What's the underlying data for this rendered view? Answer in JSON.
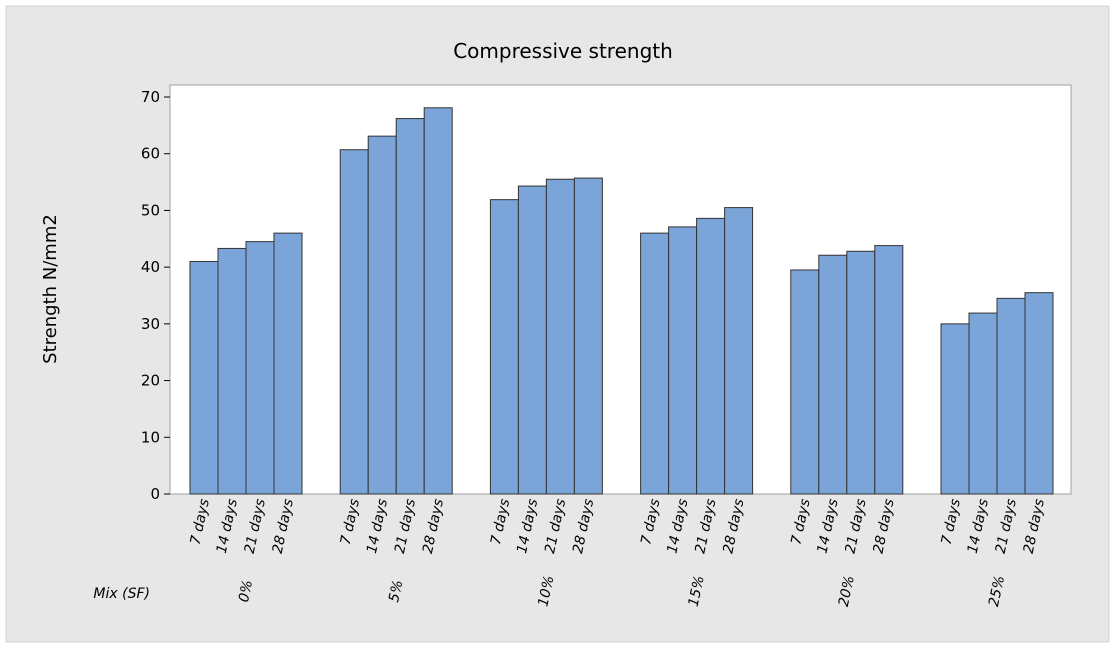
{
  "chart_data": {
    "type": "bar",
    "title": "Compressive strength",
    "y_label": "Strength N/mm2",
    "group_label": "Mix (SF)",
    "categories": [
      "7 days",
      "14 days",
      "21 days",
      "28 days"
    ],
    "groups": [
      {
        "name": "0%",
        "values": [
          41,
          43.3,
          44.5,
          46
        ]
      },
      {
        "name": "5%",
        "values": [
          60.7,
          63.1,
          66.2,
          68.1
        ]
      },
      {
        "name": "10%",
        "values": [
          51.9,
          54.3,
          55.5,
          55.7
        ]
      },
      {
        "name": "15%",
        "values": [
          46,
          47.1,
          48.6,
          50.5
        ]
      },
      {
        "name": "20%",
        "values": [
          39.5,
          42.1,
          42.8,
          43.8
        ]
      },
      {
        "name": "25%",
        "values": [
          30,
          31.9,
          34.5,
          35.5
        ]
      }
    ],
    "color": "#7ba4d9",
    "ylim": [
      0,
      70
    ],
    "yticks": [
      0,
      10,
      20,
      30,
      40,
      50,
      60,
      70
    ]
  }
}
